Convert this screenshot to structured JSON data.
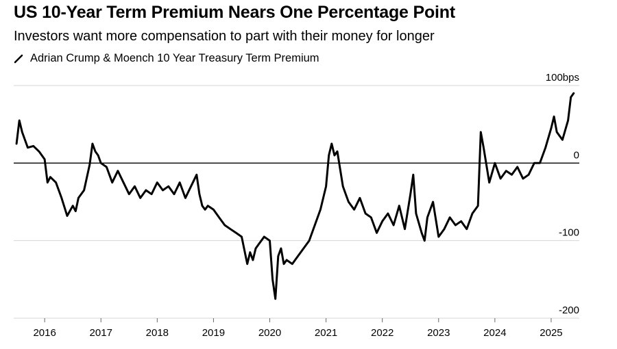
{
  "header": {
    "title": "US 10-Year Term Premium Nears One Percentage Point",
    "subtitle": "Investors want more compensation to part with their money for longer"
  },
  "legend": {
    "label": "Adrian Crump & Moench 10 Year Treasury Term Premium"
  },
  "chart_data": {
    "type": "line",
    "ylim": [
      -200,
      100
    ],
    "xlim": [
      2015.45,
      2025.5
    ],
    "y_ticks": [
      100,
      0,
      -100,
      -200
    ],
    "y_tick_labels": [
      "100bps",
      "0",
      "-100",
      "-200"
    ],
    "x_ticks": [
      2016,
      2017,
      2018,
      2019,
      2020,
      2021,
      2022,
      2023,
      2024,
      2025
    ],
    "x_tick_labels": [
      "2016",
      "2017",
      "2018",
      "2019",
      "2020",
      "2021",
      "2022",
      "2023",
      "2024",
      "2025"
    ],
    "zero_line": true,
    "series": [
      {
        "name": "Adrian Crump & Moench 10 Year Treasury Term Premium",
        "color": "#000000",
        "x": [
          2015.5,
          2015.55,
          2015.6,
          2015.7,
          2015.8,
          2015.9,
          2016.0,
          2016.05,
          2016.1,
          2016.2,
          2016.3,
          2016.4,
          2016.5,
          2016.55,
          2016.6,
          2016.7,
          2016.8,
          2016.85,
          2016.9,
          2016.95,
          2017.0,
          2017.1,
          2017.2,
          2017.3,
          2017.4,
          2017.5,
          2017.6,
          2017.7,
          2017.8,
          2017.9,
          2018.0,
          2018.1,
          2018.2,
          2018.3,
          2018.4,
          2018.5,
          2018.6,
          2018.7,
          2018.75,
          2018.8,
          2018.85,
          2018.9,
          2019.0,
          2019.1,
          2019.2,
          2019.3,
          2019.4,
          2019.5,
          2019.6,
          2019.65,
          2019.7,
          2019.75,
          2019.8,
          2019.9,
          2020.0,
          2020.05,
          2020.1,
          2020.15,
          2020.2,
          2020.25,
          2020.3,
          2020.4,
          2020.5,
          2020.6,
          2020.7,
          2020.8,
          2020.9,
          2021.0,
          2021.05,
          2021.1,
          2021.15,
          2021.2,
          2021.3,
          2021.35,
          2021.4,
          2021.5,
          2021.6,
          2021.7,
          2021.8,
          2021.9,
          2022.0,
          2022.1,
          2022.2,
          2022.3,
          2022.4,
          2022.5,
          2022.55,
          2022.6,
          2022.7,
          2022.75,
          2022.8,
          2022.9,
          2023.0,
          2023.1,
          2023.2,
          2023.3,
          2023.4,
          2023.5,
          2023.6,
          2023.7,
          2023.75,
          2023.8,
          2023.9,
          2024.0,
          2024.1,
          2024.2,
          2024.3,
          2024.4,
          2024.5,
          2024.6,
          2024.7,
          2024.8,
          2024.9,
          2025.0,
          2025.05,
          2025.1,
          2025.2,
          2025.3,
          2025.35,
          2025.4
        ],
        "values": [
          25,
          55,
          40,
          20,
          22,
          15,
          5,
          -25,
          -18,
          -25,
          -45,
          -68,
          -55,
          -62,
          -45,
          -35,
          -2,
          25,
          15,
          10,
          0,
          -5,
          -25,
          -10,
          -25,
          -40,
          -30,
          -45,
          -35,
          -40,
          -25,
          -35,
          -30,
          -40,
          -25,
          -45,
          -30,
          -15,
          -40,
          -55,
          -60,
          -55,
          -60,
          -70,
          -80,
          -85,
          -90,
          -95,
          -130,
          -115,
          -125,
          -110,
          -105,
          -95,
          -100,
          -150,
          -175,
          -120,
          -110,
          -130,
          -125,
          -130,
          -120,
          -110,
          -100,
          -80,
          -60,
          -30,
          10,
          25,
          10,
          15,
          -30,
          -40,
          -50,
          -60,
          -45,
          -65,
          -70,
          -90,
          -75,
          -65,
          -80,
          -55,
          -85,
          -40,
          -15,
          -65,
          -90,
          -100,
          -70,
          -50,
          -95,
          -85,
          -70,
          -80,
          -75,
          -85,
          -65,
          -55,
          40,
          20,
          -25,
          0,
          -20,
          -10,
          -15,
          -5,
          -20,
          -15,
          0,
          0,
          20,
          45,
          60,
          40,
          30,
          55,
          85,
          90
        ]
      }
    ]
  }
}
